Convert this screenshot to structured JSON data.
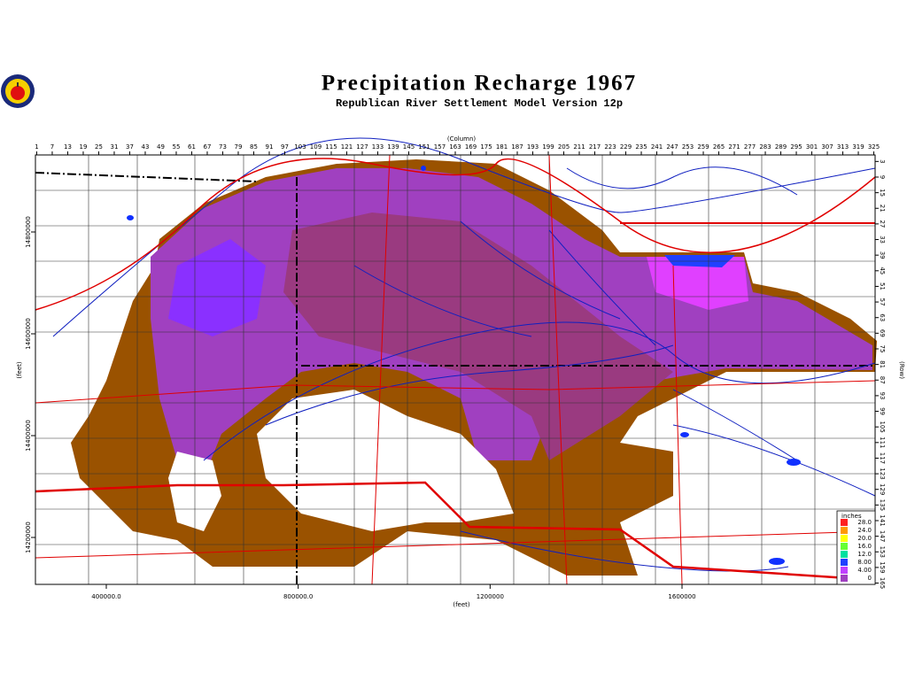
{
  "header": {
    "title": "Precipitation Recharge 1967",
    "subtitle": "Republican River Settlement Model Version 12p"
  },
  "axes": {
    "column_label": "(Column)",
    "row_label": "(Row)",
    "x_feet_label": "(feet)",
    "y_feet_label": "(feet)",
    "columns": [
      1,
      7,
      13,
      19,
      25,
      31,
      37,
      43,
      49,
      55,
      61,
      67,
      73,
      79,
      85,
      91,
      97,
      103,
      109,
      115,
      121,
      127,
      133,
      139,
      145,
      151,
      157,
      163,
      169,
      175,
      181,
      187,
      193,
      199,
      205,
      211,
      217,
      223,
      229,
      235,
      241,
      247,
      253,
      259,
      265,
      271,
      277,
      283,
      289,
      295,
      301,
      307,
      313,
      319,
      325
    ],
    "rows": [
      3,
      9,
      15,
      21,
      27,
      33,
      39,
      45,
      51,
      57,
      63,
      69,
      75,
      81,
      87,
      93,
      99,
      105,
      111,
      117,
      123,
      129,
      135,
      141,
      147,
      153,
      159,
      165
    ],
    "x_feet": [
      {
        "value": 400000,
        "label": "400000.0"
      },
      {
        "value": 800000,
        "label": "800000.0"
      },
      1200000,
      1600000
    ],
    "y_feet": [
      14800000,
      14600000,
      14400000,
      14200000
    ]
  },
  "legend": {
    "title": "inches",
    "items": [
      {
        "value": {
          "value": 28,
          "label": "28.0"
        },
        "color": "#ff2020"
      },
      {
        "value": {
          "value": 24,
          "label": "24.0"
        },
        "color": "#ff9900"
      },
      {
        "value": {
          "value": 20,
          "label": "20.0"
        },
        "color": "#ffff00"
      },
      {
        "value": {
          "value": 16,
          "label": "16.0"
        },
        "color": "#66ff33"
      },
      {
        "value": {
          "value": 12,
          "label": "12.0"
        },
        "color": "#00e0a0"
      },
      {
        "value": {
          "value": 8,
          "label": "8.00"
        },
        "color": "#2040ff"
      },
      {
        "value": {
          "value": 4,
          "label": "4.00"
        },
        "color": "#c040ff"
      },
      {
        "value": 0,
        "color": "#a040c0"
      }
    ]
  }
}
